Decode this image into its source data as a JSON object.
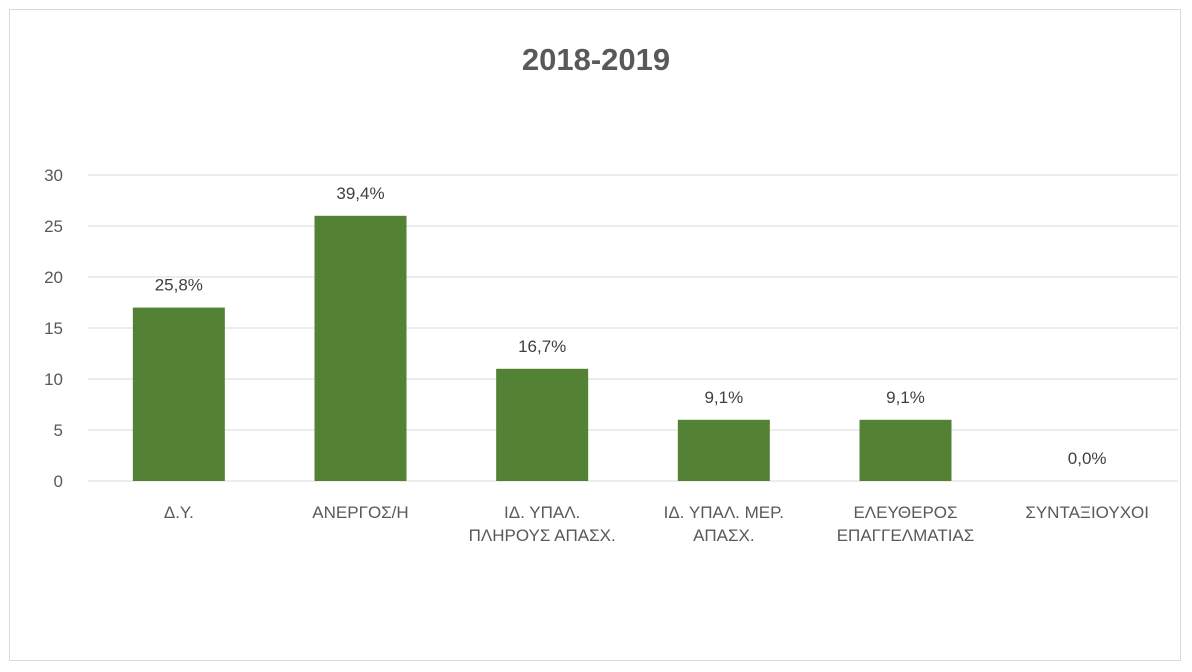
{
  "chart_data": {
    "type": "bar",
    "title": "2018-2019",
    "categories": [
      [
        "Δ.Υ."
      ],
      [
        "ΑΝΕΡΓΟΣ/Η"
      ],
      [
        "ΙΔ. ΥΠΑΛ.",
        "ΠΛΗΡΟΥΣ ΑΠΑΣΧ."
      ],
      [
        "ΙΔ. ΥΠΑΛ. ΜΕΡ.",
        "ΑΠΑΣΧ."
      ],
      [
        "ΕΛΕΥΘΕΡΟΣ",
        "ΕΠΑΓΓΕΛΜΑΤΙΑΣ"
      ],
      [
        "ΣΥΝΤΑΞΙΟΥΧΟΙ"
      ]
    ],
    "values": [
      17,
      26,
      11,
      6,
      6,
      0
    ],
    "data_labels": [
      "25,8%",
      "39,4%",
      "16,7%",
      "9,1%",
      "9,1%",
      "0,0%"
    ],
    "ylim": [
      0,
      30
    ],
    "yticks": [
      "0",
      "5",
      "10",
      "15",
      "20",
      "25",
      "30"
    ],
    "grid": true,
    "legend": "none",
    "bar_color": "#548235",
    "grid_color": "#d9d9d9"
  }
}
